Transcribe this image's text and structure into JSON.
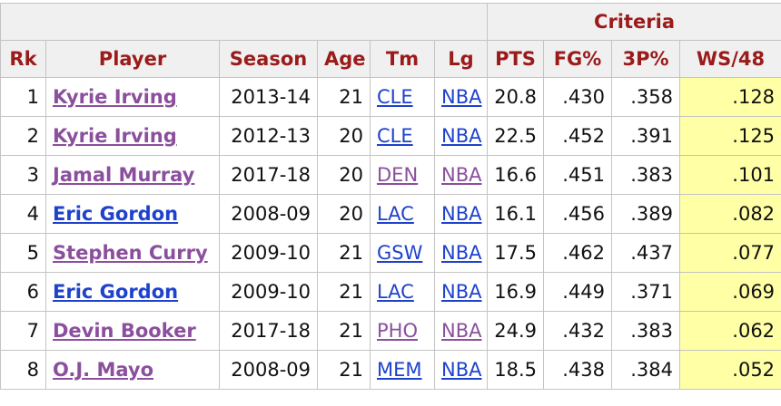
{
  "header": {
    "group_label": "Criteria",
    "columns": [
      "Rk",
      "Player",
      "Season",
      "Age",
      "Tm",
      "Lg",
      "PTS",
      "FG%",
      "3P%",
      "WS/48"
    ]
  },
  "colors": {
    "header_text": "#9b1b1b",
    "visited_link": "#8b4f9d",
    "link": "#1f42cc",
    "highlight_column": "#ffffa6"
  },
  "rows": [
    {
      "rk": "1",
      "player": "Kyrie Irving",
      "season": "2013-14",
      "age": "21",
      "tm": "CLE",
      "lg": "NBA",
      "pts": "20.8",
      "fg": ".430",
      "p3": ".358",
      "ws48": ".128",
      "player_link": "visited",
      "tm_link": "unvisited",
      "lg_link": "unvisited"
    },
    {
      "rk": "2",
      "player": "Kyrie Irving",
      "season": "2012-13",
      "age": "20",
      "tm": "CLE",
      "lg": "NBA",
      "pts": "22.5",
      "fg": ".452",
      "p3": ".391",
      "ws48": ".125",
      "player_link": "visited",
      "tm_link": "unvisited",
      "lg_link": "unvisited"
    },
    {
      "rk": "3",
      "player": "Jamal Murray",
      "season": "2017-18",
      "age": "20",
      "tm": "DEN",
      "lg": "NBA",
      "pts": "16.6",
      "fg": ".451",
      "p3": ".383",
      "ws48": ".101",
      "player_link": "visited",
      "tm_link": "visited",
      "lg_link": "visited"
    },
    {
      "rk": "4",
      "player": "Eric Gordon",
      "season": "2008-09",
      "age": "20",
      "tm": "LAC",
      "lg": "NBA",
      "pts": "16.1",
      "fg": ".456",
      "p3": ".389",
      "ws48": ".082",
      "player_link": "unvisited",
      "tm_link": "unvisited",
      "lg_link": "unvisited"
    },
    {
      "rk": "5",
      "player": "Stephen Curry",
      "season": "2009-10",
      "age": "21",
      "tm": "GSW",
      "lg": "NBA",
      "pts": "17.5",
      "fg": ".462",
      "p3": ".437",
      "ws48": ".077",
      "player_link": "visited",
      "tm_link": "unvisited",
      "lg_link": "unvisited"
    },
    {
      "rk": "6",
      "player": "Eric Gordon",
      "season": "2009-10",
      "age": "21",
      "tm": "LAC",
      "lg": "NBA",
      "pts": "16.9",
      "fg": ".449",
      "p3": ".371",
      "ws48": ".069",
      "player_link": "unvisited",
      "tm_link": "unvisited",
      "lg_link": "unvisited"
    },
    {
      "rk": "7",
      "player": "Devin Booker",
      "season": "2017-18",
      "age": "21",
      "tm": "PHO",
      "lg": "NBA",
      "pts": "24.9",
      "fg": ".432",
      "p3": ".383",
      "ws48": ".062",
      "player_link": "visited",
      "tm_link": "visited",
      "lg_link": "visited"
    },
    {
      "rk": "8",
      "player": "O.J. Mayo",
      "season": "2008-09",
      "age": "21",
      "tm": "MEM",
      "lg": "NBA",
      "pts": "18.5",
      "fg": ".438",
      "p3": ".384",
      "ws48": ".052",
      "player_link": "visited",
      "tm_link": "unvisited",
      "lg_link": "unvisited"
    }
  ]
}
